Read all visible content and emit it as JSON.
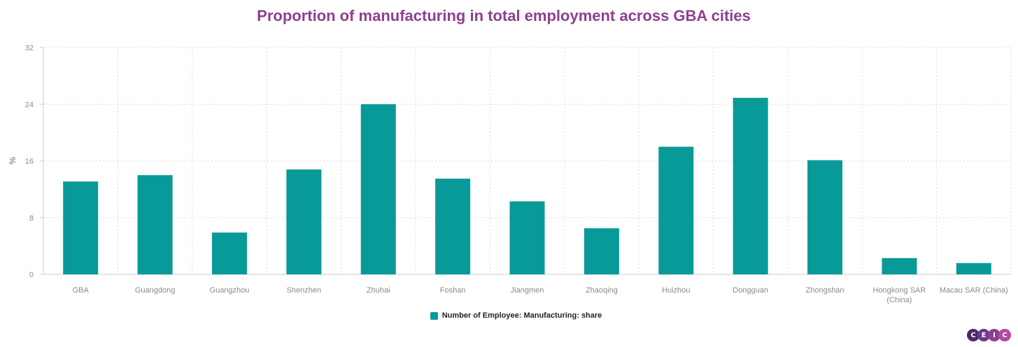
{
  "chart_data": {
    "type": "bar",
    "title": "Proportion of manufacturing in total employment across GBA cities",
    "ylabel": "%",
    "xlabel": "",
    "ylim": [
      0,
      32
    ],
    "yticks": [
      0,
      8,
      16,
      24,
      32
    ],
    "grid": true,
    "legend_position": "bottom-center",
    "categories": [
      "GBA",
      "Guangdong",
      "Guangzhou",
      "Shenzhen",
      "Zhuhai",
      "Foshan",
      "Jiangmen",
      "Zhaoqing",
      "Huizhou",
      "Dongguan",
      "Zhongshan",
      "Hongkong SAR (China)",
      "Macau SAR (China)"
    ],
    "category_lines": [
      [
        "GBA"
      ],
      [
        "Guangdong"
      ],
      [
        "Guangzhou"
      ],
      [
        "Shenzhen"
      ],
      [
        "Zhuhai"
      ],
      [
        "Foshan"
      ],
      [
        "Jiangmen"
      ],
      [
        "Zhaoqing"
      ],
      [
        "Huizhou"
      ],
      [
        "Dongguan"
      ],
      [
        "Zhongshan"
      ],
      [
        "Hongkong SAR",
        "(China)"
      ],
      [
        "Macau SAR (China)"
      ]
    ],
    "series": [
      {
        "name": "Number of Employee: Manufacturing: share",
        "color": "#089a98",
        "values": [
          13.1,
          14.0,
          5.9,
          14.8,
          24.0,
          13.5,
          10.3,
          6.5,
          18.0,
          24.9,
          16.1,
          2.3,
          1.6
        ]
      }
    ]
  },
  "branding": {
    "logo_letters": [
      "C",
      "E",
      "I",
      "C"
    ],
    "logo_colors": [
      "#4a2a6a",
      "#6b3a8a",
      "#8e3f8f",
      "#b04a9c"
    ]
  }
}
